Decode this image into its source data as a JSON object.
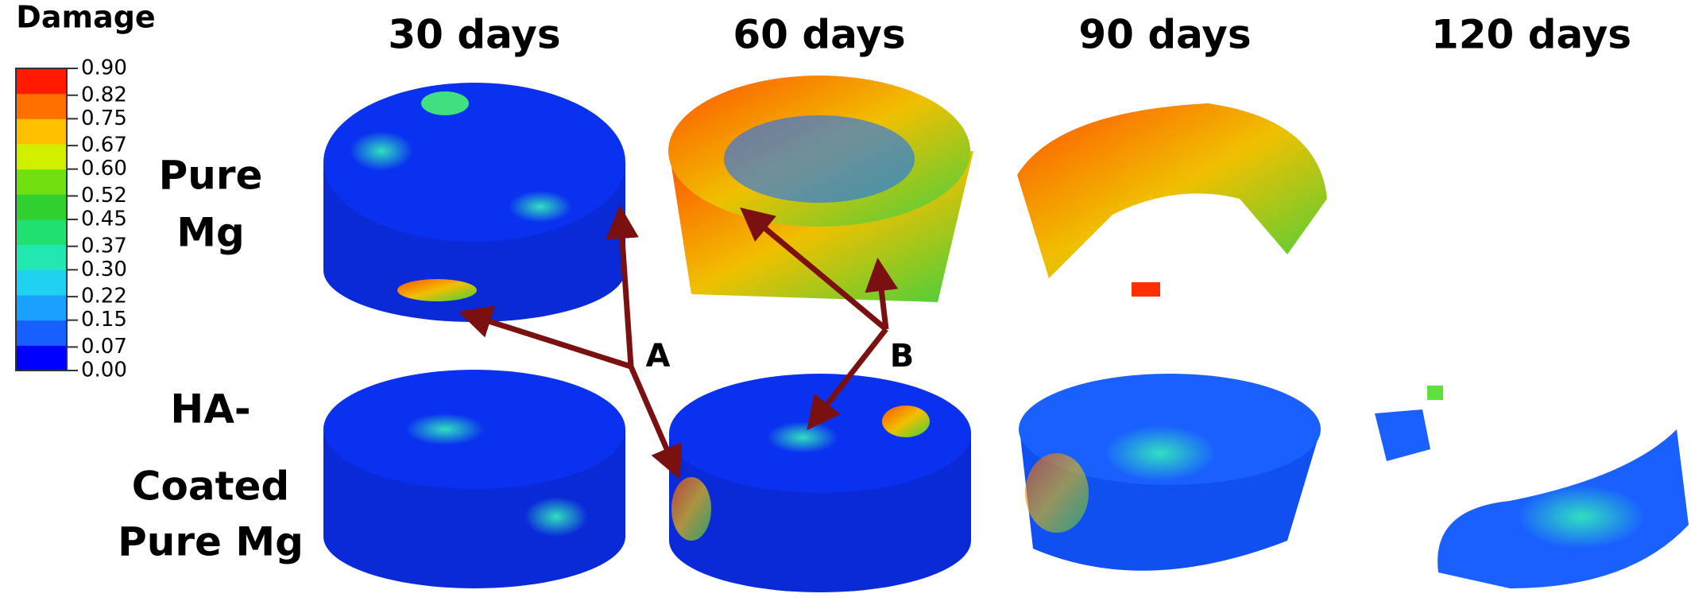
{
  "legend": {
    "title": "Damage",
    "ticks": [
      {
        "value": 0,
        "label": "0.00"
      },
      {
        "value": 0.07,
        "label": "0.07"
      },
      {
        "value": 0.15,
        "label": "0.15"
      },
      {
        "value": 0.22,
        "label": "0.22"
      },
      {
        "value": 0.3,
        "label": "0.30"
      },
      {
        "value": 0.37,
        "label": "0.37"
      },
      {
        "value": 0.45,
        "label": "0.45"
      },
      {
        "value": 0.52,
        "label": "0.52"
      },
      {
        "value": 0.6,
        "label": "0.60"
      },
      {
        "value": 0.67,
        "label": "0.67"
      },
      {
        "value": 0.75,
        "label": "0.75"
      },
      {
        "value": 0.82,
        "label": "0.82"
      },
      {
        "value": 0.9,
        "label": "0.90"
      }
    ],
    "colors": [
      "#0000ff",
      "#1560ff",
      "#1aa0ff",
      "#20d0f0",
      "#20e8b0",
      "#20e070",
      "#30d030",
      "#70e010",
      "#d0f000",
      "#ffc000",
      "#ff7000",
      "#ff1a00"
    ]
  },
  "columns": [
    "30 days",
    "60 days",
    "90 days",
    "120 days"
  ],
  "rows": [
    [
      "Pure",
      "Mg"
    ],
    [
      "HA-",
      "Coated",
      "Pure Mg"
    ]
  ],
  "annotations": [
    "A",
    "B"
  ]
}
